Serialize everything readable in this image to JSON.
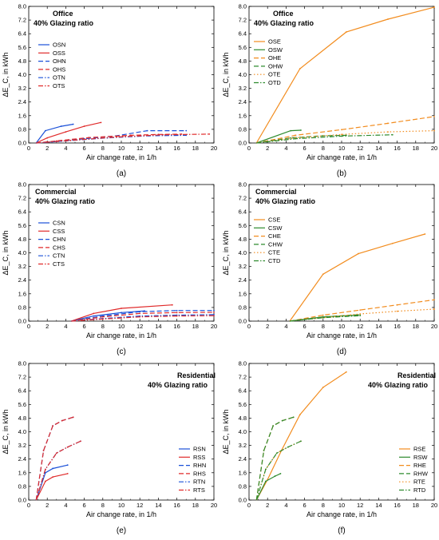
{
  "figure": {
    "panel_labels": [
      "(a)",
      "(b)",
      "(c)",
      "(d)",
      "(e)",
      "(f)"
    ],
    "colors": {
      "orange": "#f28c1e",
      "green": "#2e8b2e",
      "blue": "#1a50d8",
      "red": "#e02a2a"
    }
  },
  "chart_data": [
    {
      "type": "line",
      "panel": "(a)",
      "title": "Office",
      "subtitle": "40% Glazing ratio",
      "xlabel": "Air change rate, in 1/h",
      "ylabel": "ΔE_C, in kWh",
      "xlim": [
        0,
        20
      ],
      "ylim": [
        0,
        8
      ],
      "xticks": [
        "0",
        "2",
        "4",
        "6",
        "8",
        "10",
        "12",
        "14",
        "16",
        "18",
        "20"
      ],
      "yticks": [
        "0.0",
        "0.8",
        "1.6",
        "2.4",
        "3.2",
        "4.0",
        "4.8",
        "5.6",
        "6.4",
        "7.2",
        "8.0"
      ],
      "legend_position": "top-left",
      "series": [
        {
          "name": "OSN",
          "color": "#1a50d8",
          "dash": "solid",
          "x": [
            0.8,
            1.8,
            3.5,
            4.8
          ],
          "y": [
            0,
            0.72,
            0.98,
            1.1
          ]
        },
        {
          "name": "OSS",
          "color": "#e02a2a",
          "dash": "solid",
          "x": [
            0.8,
            2.0,
            4.0,
            6.0,
            7.8
          ],
          "y": [
            0,
            0.3,
            0.65,
            0.98,
            1.2
          ]
        },
        {
          "name": "OHN",
          "color": "#1a50d8",
          "dash": "dashed",
          "x": [
            0.8,
            3.0,
            6.0,
            9.5,
            12.8,
            17.0
          ],
          "y": [
            0,
            0.08,
            0.25,
            0.42,
            0.72,
            0.72
          ]
        },
        {
          "name": "OHS",
          "color": "#e02a2a",
          "dash": "dashed",
          "x": [
            0.8,
            3.0,
            6.5,
            11.0,
            14.0,
            16.5
          ],
          "y": [
            0,
            0.12,
            0.32,
            0.45,
            0.5,
            0.52
          ]
        },
        {
          "name": "OTN",
          "color": "#1a50d8",
          "dash": "dashdot",
          "x": [
            0.8,
            4.0,
            8.5,
            13.0,
            17.0
          ],
          "y": [
            0,
            0.12,
            0.3,
            0.42,
            0.45
          ]
        },
        {
          "name": "OTS",
          "color": "#e02a2a",
          "dash": "dashdot",
          "x": [
            0.8,
            4.5,
            9.5,
            14.5,
            19.5
          ],
          "y": [
            0,
            0.15,
            0.35,
            0.48,
            0.52
          ]
        }
      ]
    },
    {
      "type": "line",
      "panel": "(b)",
      "title": "Office",
      "subtitle": "40% Glazing ratio",
      "xlabel": "Air change rate, in 1/h",
      "ylabel": "ΔE_C, in kWh",
      "xlim": [
        0,
        20
      ],
      "ylim": [
        0,
        8
      ],
      "xticks": [
        "0",
        "2",
        "4",
        "6",
        "8",
        "10",
        "12",
        "14",
        "16",
        "18",
        "20"
      ],
      "yticks": [
        "0.0",
        "0.8",
        "1.6",
        "2.4",
        "3.2",
        "4.0",
        "4.8",
        "5.6",
        "6.4",
        "7.2",
        "8.0"
      ],
      "legend_position": "left",
      "series": [
        {
          "name": "OSE",
          "color": "#f28c1e",
          "dash": "solid",
          "x": [
            0.8,
            5.5,
            10.5,
            15.0,
            20.0
          ],
          "y": [
            0,
            4.35,
            6.5,
            7.25,
            7.95
          ]
        },
        {
          "name": "OSW",
          "color": "#2e8b2e",
          "dash": "solid",
          "x": [
            0.8,
            4.5,
            5.6
          ],
          "y": [
            0,
            0.72,
            0.75
          ]
        },
        {
          "name": "OHE",
          "color": "#f28c1e",
          "dash": "dashed",
          "x": [
            0.8,
            5.0,
            10.0,
            15.0,
            20.0
          ],
          "y": [
            0,
            0.45,
            0.78,
            1.15,
            1.55
          ]
        },
        {
          "name": "OHW",
          "color": "#2e8b2e",
          "dash": "dashed",
          "x": [
            0.8,
            4.5,
            8.0,
            10.5
          ],
          "y": [
            0,
            0.3,
            0.42,
            0.45
          ]
        },
        {
          "name": "OTE",
          "color": "#f28c1e",
          "dash": "dotted",
          "x": [
            0.8,
            5.0,
            10.0,
            15.0,
            20.0
          ],
          "y": [
            0,
            0.3,
            0.5,
            0.65,
            0.72
          ]
        },
        {
          "name": "OTD",
          "color": "#2e8b2e",
          "dash": "dashdot",
          "x": [
            0.8,
            5.0,
            10.0,
            15.5
          ],
          "y": [
            0,
            0.25,
            0.4,
            0.48
          ]
        }
      ]
    },
    {
      "type": "line",
      "panel": "(c)",
      "title": "Commercial",
      "subtitle": "40% Glazing ratio",
      "xlabel": "Air change rate, in 1/h",
      "ylabel": "ΔE_C, in kWh",
      "xlim": [
        0,
        20
      ],
      "ylim": [
        0,
        8
      ],
      "xticks": [
        "0",
        "2",
        "4",
        "6",
        "8",
        "10",
        "12",
        "14",
        "16",
        "18",
        "20"
      ],
      "yticks": [
        "0.0",
        "0.8",
        "1.6",
        "2.4",
        "3.2",
        "4.0",
        "4.8",
        "5.6",
        "6.4",
        "7.2",
        "8.0"
      ],
      "legend_position": "top-left",
      "series": [
        {
          "name": "CSN",
          "color": "#1a50d8",
          "dash": "solid",
          "x": [
            4.6,
            7.0,
            10.0,
            12.5
          ],
          "y": [
            0,
            0.3,
            0.5,
            0.6
          ]
        },
        {
          "name": "CSS",
          "color": "#e02a2a",
          "dash": "solid",
          "x": [
            4.6,
            7.0,
            10.0,
            15.5
          ],
          "y": [
            0,
            0.45,
            0.75,
            0.95
          ]
        },
        {
          "name": "CHN",
          "color": "#1a50d8",
          "dash": "dashed",
          "x": [
            4.6,
            8.0,
            12.0,
            16.0,
            20.0
          ],
          "y": [
            0,
            0.3,
            0.55,
            0.62,
            0.62
          ]
        },
        {
          "name": "CHS",
          "color": "#e02a2a",
          "dash": "dashed",
          "x": [
            4.6,
            8.0,
            12.0,
            16.0,
            20.0
          ],
          "y": [
            0,
            0.25,
            0.45,
            0.5,
            0.52
          ]
        },
        {
          "name": "CTN",
          "color": "#1a50d8",
          "dash": "dashdot",
          "x": [
            4.6,
            8.0,
            12.0,
            16.0,
            20.0
          ],
          "y": [
            0,
            0.15,
            0.3,
            0.35,
            0.38
          ]
        },
        {
          "name": "CTS",
          "color": "#e02a2a",
          "dash": "dashdot",
          "x": [
            4.6,
            8.0,
            12.0,
            16.0,
            20.0
          ],
          "y": [
            0,
            0.12,
            0.25,
            0.3,
            0.32
          ]
        }
      ]
    },
    {
      "type": "line",
      "panel": "(d)",
      "title": "Commercial",
      "subtitle": "40% Glazing ratio",
      "xlabel": "Air change rate, in 1/h",
      "ylabel": "ΔE_C, in kWh",
      "xlim": [
        0,
        20
      ],
      "ylim": [
        0,
        8
      ],
      "xticks": [
        "0",
        "2",
        "4",
        "6",
        "8",
        "10",
        "12",
        "14",
        "16",
        "18",
        "20"
      ],
      "yticks": [
        "0.0",
        "0.8",
        "1.6",
        "2.4",
        "3.2",
        "4.0",
        "4.8",
        "5.6",
        "6.4",
        "7.2",
        "8.0"
      ],
      "legend_position": "left",
      "series": [
        {
          "name": "CSE",
          "color": "#f28c1e",
          "dash": "solid",
          "x": [
            4.4,
            8.0,
            11.8,
            15.5,
            19.0
          ],
          "y": [
            0,
            2.75,
            3.95,
            4.55,
            5.1
          ]
        },
        {
          "name": "CSW",
          "color": "#2e8b2e",
          "dash": "solid",
          "x": [
            4.4,
            8.0,
            11.8
          ],
          "y": [
            0,
            0.25,
            0.35
          ]
        },
        {
          "name": "CHE",
          "color": "#f28c1e",
          "dash": "dashed",
          "x": [
            4.4,
            8.0,
            12.0,
            16.0,
            20.0
          ],
          "y": [
            0,
            0.35,
            0.65,
            0.95,
            1.25
          ]
        },
        {
          "name": "CHW",
          "color": "#2e8b2e",
          "dash": "dashed",
          "x": [
            4.4,
            8.0,
            12.0
          ],
          "y": [
            0,
            0.25,
            0.38
          ]
        },
        {
          "name": "CTE",
          "color": "#f28c1e",
          "dash": "dotted",
          "x": [
            4.4,
            8.0,
            12.0,
            16.0,
            20.0
          ],
          "y": [
            0,
            0.2,
            0.42,
            0.58,
            0.7
          ]
        },
        {
          "name": "CTD",
          "color": "#2e8b2e",
          "dash": "dashdot",
          "x": [
            4.4,
            8.0,
            12.0
          ],
          "y": [
            0,
            0.2,
            0.32
          ]
        }
      ]
    },
    {
      "type": "line",
      "panel": "(e)",
      "title": "Residential",
      "subtitle": "40% Glazing ratio",
      "xlabel": "Air change rate, in 1/h",
      "ylabel": "ΔE_C, in kWh",
      "xlim": [
        0,
        20
      ],
      "ylim": [
        0,
        8
      ],
      "xticks": [
        "0",
        "2",
        "4",
        "6",
        "8",
        "10",
        "12",
        "14",
        "16",
        "18",
        "20"
      ],
      "yticks": [
        "0.0",
        "0.8",
        "1.6",
        "2.4",
        "3.2",
        "4.0",
        "4.8",
        "5.6",
        "6.4",
        "7.2",
        "8.0"
      ],
      "legend_position": "bottom-right",
      "series": [
        {
          "name": "RSN",
          "color": "#1a50d8",
          "dash": "solid",
          "x": [
            0.8,
            1.8,
            2.6,
            4.2
          ],
          "y": [
            0,
            1.6,
            1.85,
            2.05
          ]
        },
        {
          "name": "RSS",
          "color": "#e02a2a",
          "dash": "solid",
          "x": [
            0.8,
            1.8,
            2.6,
            4.2
          ],
          "y": [
            0,
            1.1,
            1.35,
            1.55
          ]
        },
        {
          "name": "RHN",
          "color": "#1a50d8",
          "dash": "dashed",
          "x": [
            0.8,
            1.6,
            2.6,
            3.6,
            4.8
          ],
          "y": [
            0,
            2.9,
            4.35,
            4.65,
            4.85
          ]
        },
        {
          "name": "RHS",
          "color": "#e02a2a",
          "dash": "dashed",
          "x": [
            0.8,
            1.6,
            2.6,
            3.6,
            4.8
          ],
          "y": [
            0,
            2.9,
            4.35,
            4.65,
            4.85
          ]
        },
        {
          "name": "RTN",
          "color": "#1a50d8",
          "dash": "dashdot",
          "x": [
            0.8,
            1.8,
            3.0,
            4.2,
            5.6
          ],
          "y": [
            0,
            1.8,
            2.75,
            3.1,
            3.45
          ]
        },
        {
          "name": "RTS",
          "color": "#e02a2a",
          "dash": "dashdot",
          "x": [
            0.8,
            1.8,
            3.0,
            4.2,
            5.6
          ],
          "y": [
            0,
            1.8,
            2.75,
            3.1,
            3.45
          ]
        }
      ]
    },
    {
      "type": "line",
      "panel": "(f)",
      "title": "Residential",
      "subtitle": "40% Glazing ratio",
      "xlabel": "Air change rate, in 1/h",
      "ylabel": "ΔE_C, in kWh",
      "xlim": [
        0,
        20
      ],
      "ylim": [
        0,
        8
      ],
      "xticks": [
        "0",
        "2",
        "4",
        "6",
        "8",
        "10",
        "12",
        "14",
        "16",
        "18",
        "20"
      ],
      "yticks": [
        "0.0",
        "0.8",
        "1.6",
        "2.4",
        "3.2",
        "4.0",
        "4.8",
        "5.6",
        "6.4",
        "7.2",
        "8.0"
      ],
      "legend_position": "bottom-right",
      "series": [
        {
          "name": "RSE",
          "color": "#f28c1e",
          "dash": "solid",
          "x": [
            0.8,
            2.0,
            3.5,
            5.5,
            8.0,
            10.5
          ],
          "y": [
            0,
            1.2,
            2.9,
            5.0,
            6.6,
            7.5
          ]
        },
        {
          "name": "RSW",
          "color": "#2e8b2e",
          "dash": "solid",
          "x": [
            0.8,
            1.8,
            2.8,
            3.4
          ],
          "y": [
            0,
            1.1,
            1.4,
            1.55
          ]
        },
        {
          "name": "RHE",
          "color": "#f28c1e",
          "dash": "dashed",
          "x": [
            0.8,
            1.6,
            2.6,
            3.6,
            4.8
          ],
          "y": [
            0,
            2.9,
            4.35,
            4.65,
            4.85
          ]
        },
        {
          "name": "RHW",
          "color": "#2e8b2e",
          "dash": "dashed",
          "x": [
            0.8,
            1.6,
            2.6,
            3.6,
            4.8
          ],
          "y": [
            0,
            2.9,
            4.35,
            4.65,
            4.85
          ]
        },
        {
          "name": "RTE",
          "color": "#f28c1e",
          "dash": "dotted",
          "x": [
            0.8,
            1.8,
            3.0,
            4.2,
            5.6
          ],
          "y": [
            0,
            1.8,
            2.75,
            3.1,
            3.45
          ]
        },
        {
          "name": "RTD",
          "color": "#2e8b2e",
          "dash": "dashdot",
          "x": [
            0.8,
            1.8,
            3.0,
            4.2,
            5.6
          ],
          "y": [
            0,
            1.8,
            2.75,
            3.1,
            3.45
          ]
        }
      ]
    }
  ]
}
